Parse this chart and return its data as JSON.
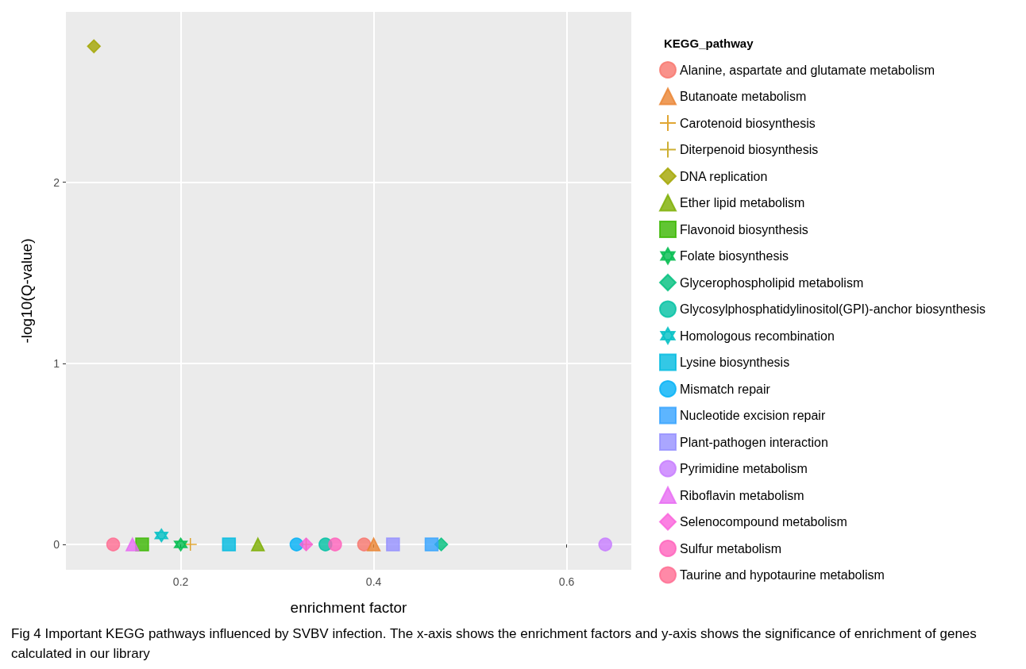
{
  "chart_data": {
    "type": "scatter",
    "xlabel": "enrichment factor",
    "ylabel": "-log10(Q-value)",
    "legend_title": "KEGG_pathway",
    "xlim": [
      0.081,
      0.667
    ],
    "xticks": [
      0.2,
      0.4,
      0.6
    ],
    "ylim": [
      -0.14,
      2.94
    ],
    "yticks": [
      0,
      1,
      2
    ],
    "grid": true,
    "legend": "right",
    "annotations": [
      "Fig 4 Important KEGG pathways influenced by SVBV infection. The x-axis shows the enrichment factors and y-axis shows the significance of enrichment of genes calculated in our library"
    ],
    "series": [
      {
        "name": "Alanine, aspartate and glutamate metabolism",
        "color": "#F8766D",
        "marker": "circle",
        "x": [
          0.39
        ],
        "values": [
          0
        ]
      },
      {
        "name": "Butanoate metabolism",
        "color": "#EA8331",
        "marker": "triangle",
        "x": [
          0.4
        ],
        "values": [
          0
        ]
      },
      {
        "name": "Carotenoid biosynthesis",
        "color": "#D89000",
        "marker": "cross",
        "x": [
          0.21
        ],
        "values": [
          0
        ]
      },
      {
        "name": "Diterpenoid biosynthesis",
        "color": "#C09B00",
        "marker": "cross",
        "x": [
          0.33
        ],
        "values": [
          0
        ]
      },
      {
        "name": "DNA replication",
        "color": "#A3A500",
        "marker": "diamond",
        "x": [
          0.11
        ],
        "values": [
          2.75
        ]
      },
      {
        "name": "Ether lipid metabolism",
        "color": "#7CAE00",
        "marker": "triangle",
        "x": [
          0.28
        ],
        "values": [
          0
        ]
      },
      {
        "name": "Flavonoid biosynthesis",
        "color": "#39B600",
        "marker": "square",
        "x": [
          0.16
        ],
        "values": [
          0
        ]
      },
      {
        "name": "Folate biosynthesis",
        "color": "#00BB4E",
        "marker": "star",
        "x": [
          0.2
        ],
        "values": [
          0
        ]
      },
      {
        "name": "Glycerophospholipid metabolism",
        "color": "#00BF7D",
        "marker": "diamond",
        "x": [
          0.47
        ],
        "values": [
          0
        ]
      },
      {
        "name": "Glycosylphosphatidylinositol(GPI)-anchor biosynthesis",
        "color": "#00C1A3",
        "marker": "circle",
        "x": [
          0.35
        ],
        "values": [
          0
        ]
      },
      {
        "name": "Homologous recombination",
        "color": "#00BFC4",
        "marker": "star",
        "x": [
          0.18
        ],
        "values": [
          0.05
        ]
      },
      {
        "name": "Lysine biosynthesis",
        "color": "#00BAE0",
        "marker": "square",
        "x": [
          0.25
        ],
        "values": [
          0
        ]
      },
      {
        "name": "Mismatch repair",
        "color": "#00B0F6",
        "marker": "circle",
        "x": [
          0.32
        ],
        "values": [
          0
        ]
      },
      {
        "name": "Nucleotide excision repair",
        "color": "#35A2FF",
        "marker": "square",
        "x": [
          0.46
        ],
        "values": [
          0
        ]
      },
      {
        "name": "Plant-pathogen interaction",
        "color": "#9590FF",
        "marker": "square",
        "x": [
          0.42
        ],
        "values": [
          0
        ]
      },
      {
        "name": "Pyrimidine metabolism",
        "color": "#C77CFF",
        "marker": "circle",
        "x": [
          0.64
        ],
        "values": [
          0
        ]
      },
      {
        "name": "Riboflavin metabolism",
        "color": "#E76BF3",
        "marker": "triangle",
        "x": [
          0.15
        ],
        "values": [
          0
        ]
      },
      {
        "name": "Selenocompound metabolism",
        "color": "#FA62DB",
        "marker": "diamond",
        "x": [
          0.33
        ],
        "values": [
          0
        ]
      },
      {
        "name": "Sulfur metabolism",
        "color": "#FF62BC",
        "marker": "circle",
        "x": [
          0.36
        ],
        "values": [
          0
        ]
      },
      {
        "name": "Taurine and hypotaurine metabolism",
        "color": "#FF6C91",
        "marker": "circle",
        "x": [
          0.13
        ],
        "values": [
          0
        ]
      }
    ]
  }
}
